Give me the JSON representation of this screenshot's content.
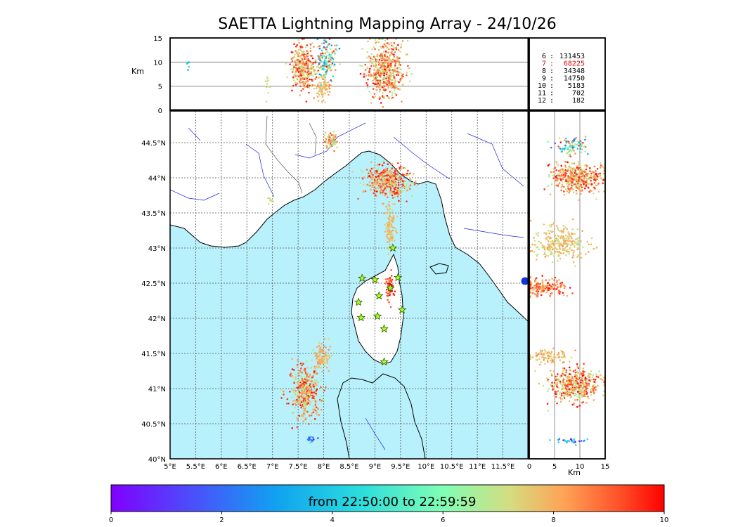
{
  "chart_data": {
    "type": "scatter",
    "title": "SAETTA Lightning Mapping Array - 24/10/26",
    "map": {
      "x_ticks": [
        "5°E",
        "5.5°E",
        "6°E",
        "6.5°E",
        "7°E",
        "7.5°E",
        "8°E",
        "8.5°E",
        "9°E",
        "9.5°E",
        "10°E",
        "10.5°E",
        "11°E",
        "11.5°E"
      ],
      "y_ticks": [
        "40°N",
        "40.5°N",
        "41°N",
        "41.5°N",
        "42°N",
        "42.5°N",
        "43°N",
        "43.5°N",
        "44°N",
        "44.5°N"
      ],
      "lon_range": [
        5,
        12
      ],
      "lat_range": [
        40,
        44.95
      ]
    },
    "altitude_panel": {
      "ylabel": "Km",
      "y_ticks": [
        "0",
        "5",
        "10",
        "15"
      ],
      "ylim": [
        0,
        15
      ]
    },
    "side_panel": {
      "xlabel": "Km",
      "x_ticks": [
        "0",
        "5",
        "10",
        "15"
      ],
      "xlim": [
        0,
        15
      ]
    },
    "station_counts": [
      {
        "stations": "6",
        "count": "131453",
        "color": "#000000"
      },
      {
        "stations": "7",
        "count": "68225",
        "color": "#e00000"
      },
      {
        "stations": "8",
        "count": "34348",
        "color": "#000000"
      },
      {
        "stations": "9",
        "count": "14750",
        "color": "#000000"
      },
      {
        "stations": "10",
        "count": "5183",
        "color": "#000000"
      },
      {
        "stations": "11",
        "count": "702",
        "color": "#000000"
      },
      {
        "stations": "12",
        "count": "182",
        "color": "#000000"
      }
    ],
    "stations": [
      {
        "lon": 9.35,
        "lat": 43.0
      },
      {
        "lon": 8.75,
        "lat": 42.57
      },
      {
        "lon": 9.0,
        "lat": 42.55
      },
      {
        "lon": 9.45,
        "lat": 42.58
      },
      {
        "lon": 9.3,
        "lat": 42.43
      },
      {
        "lon": 9.08,
        "lat": 42.32
      },
      {
        "lon": 8.68,
        "lat": 42.23
      },
      {
        "lon": 9.53,
        "lat": 42.12
      },
      {
        "lon": 8.73,
        "lat": 42.01
      },
      {
        "lon": 9.05,
        "lat": 42.03
      },
      {
        "lon": 9.18,
        "lat": 41.85
      },
      {
        "lon": 9.18,
        "lat": 41.38
      }
    ],
    "clusters": [
      {
        "lon": 7.65,
        "lat": 40.95,
        "slon": 0.14,
        "slat": 0.18,
        "n": 380,
        "tmin": 6.5,
        "tmax": 10
      },
      {
        "lon": 7.95,
        "lat": 41.45,
        "slon": 0.08,
        "slat": 0.1,
        "n": 90,
        "tmin": 7.2,
        "tmax": 8.5
      },
      {
        "lon": 9.25,
        "lat": 43.95,
        "slon": 0.22,
        "slat": 0.12,
        "n": 420,
        "tmin": 6.5,
        "tmax": 10
      },
      {
        "lon": 8.15,
        "lat": 44.52,
        "slon": 0.06,
        "slat": 0.06,
        "n": 70,
        "tmin": 6,
        "tmax": 9.5
      },
      {
        "lon": 9.3,
        "lat": 43.3,
        "slon": 0.05,
        "slat": 0.15,
        "n": 110,
        "tmin": 7.2,
        "tmax": 8.3
      },
      {
        "lon": 9.3,
        "lat": 42.45,
        "slon": 0.04,
        "slat": 0.1,
        "n": 60,
        "tmin": 8.8,
        "tmax": 10
      },
      {
        "lon": 6.95,
        "lat": 43.68,
        "slon": 0.03,
        "slat": 0.02,
        "n": 10,
        "tmin": 6.9,
        "tmax": 7.2
      },
      {
        "lon": 7.75,
        "lat": 40.28,
        "slon": 0.05,
        "slat": 0.02,
        "n": 15,
        "tmin": 0,
        "tmax": 5
      }
    ],
    "alt_clusters": [
      {
        "lon": 7.6,
        "alt": 9,
        "slon": 0.12,
        "salt": 2.2,
        "n": 320,
        "tmin": 6.5,
        "tmax": 10
      },
      {
        "lon": 7.98,
        "alt": 4.5,
        "slon": 0.08,
        "salt": 1.3,
        "n": 90,
        "tmin": 7.2,
        "tmax": 8.5
      },
      {
        "lon": 8.05,
        "alt": 10.5,
        "slon": 0.1,
        "salt": 2,
        "n": 140,
        "tmin": 2,
        "tmax": 10
      },
      {
        "lon": 9.2,
        "alt": 8.5,
        "slon": 0.2,
        "salt": 2.8,
        "n": 480,
        "tmin": 6.5,
        "tmax": 10
      },
      {
        "lon": 6.9,
        "alt": 6,
        "slon": 0.02,
        "salt": 1.5,
        "n": 12,
        "tmin": 6.9,
        "tmax": 7.3
      },
      {
        "lon": 5.35,
        "alt": 9,
        "slon": 0.02,
        "salt": 0.8,
        "n": 6,
        "tmin": 3,
        "tmax": 5
      }
    ],
    "side_clusters": [
      {
        "alt": 9.5,
        "lat": 44.0,
        "salt": 2.6,
        "slat": 0.1,
        "n": 420,
        "tmin": 6.5,
        "tmax": 10
      },
      {
        "alt": 8.5,
        "lat": 44.45,
        "salt": 1.6,
        "slat": 0.07,
        "n": 90,
        "tmin": 2,
        "tmax": 10
      },
      {
        "alt": 6,
        "lat": 43.05,
        "salt": 2.6,
        "slat": 0.12,
        "n": 260,
        "tmin": 6.8,
        "tmax": 8.4
      },
      {
        "alt": 3,
        "lat": 42.45,
        "salt": 2.2,
        "slat": 0.06,
        "n": 170,
        "tmin": 7.5,
        "tmax": 10
      },
      {
        "alt": 9,
        "lat": 41.05,
        "salt": 2.6,
        "slat": 0.12,
        "n": 420,
        "tmin": 6.5,
        "tmax": 10
      },
      {
        "alt": 3.5,
        "lat": 41.45,
        "salt": 1.8,
        "slat": 0.05,
        "n": 90,
        "tmin": 7,
        "tmax": 8.6
      },
      {
        "alt": 9,
        "lat": 40.25,
        "salt": 1.8,
        "slat": 0.02,
        "n": 25,
        "tmin": 0,
        "tmax": 5
      }
    ],
    "colorbar": {
      "label": "from 22:50:00 to 22:59:59",
      "ticks": [
        "0",
        "2",
        "4",
        "6",
        "8",
        "10"
      ],
      "range": [
        0,
        10
      ]
    }
  },
  "colors": {
    "sea": "#b8f0fb",
    "land": "#ffffff",
    "rivers": "#2222dd",
    "station_fill": "#aaff22"
  }
}
